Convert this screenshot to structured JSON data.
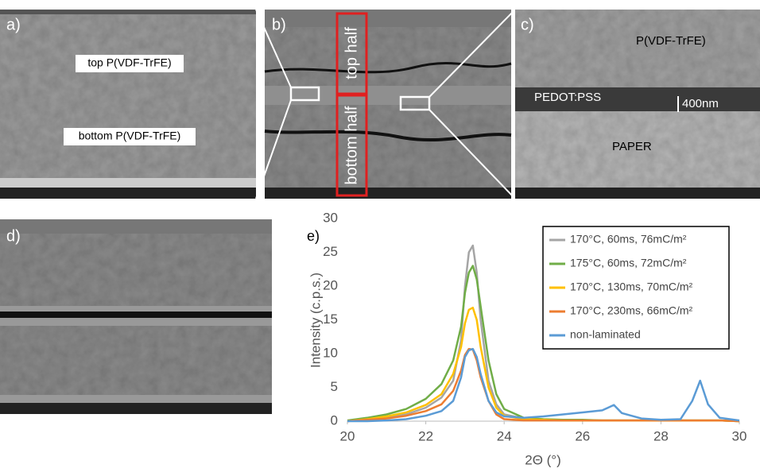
{
  "panels": {
    "a": {
      "label": "a)",
      "top": "top P(VDF-TrFE)",
      "bottom": "bottom P(VDF-TrFE)"
    },
    "b": {
      "label": "b)",
      "top": "top half",
      "bottom": "bottom half"
    },
    "c": {
      "label": "c)",
      "polymer": "P(VDF-TrFE)",
      "electrode": "PEDOT:PSS",
      "scale": "400nm",
      "substrate": "PAPER"
    },
    "d": {
      "label": "d)"
    }
  },
  "chart_data": {
    "type": "line",
    "panel_label": "e)",
    "x_label": "2Θ (°)",
    "y_label": "Intensity (c.p.s.)",
    "x": [
      20,
      20.5,
      21,
      21.5,
      22,
      22.4,
      22.7,
      22.9,
      23.0,
      23.1,
      23.2,
      23.3,
      23.4,
      23.6,
      23.8,
      24.0,
      24.5,
      25,
      25.5,
      26,
      26.5,
      26.8,
      27,
      27.5,
      28,
      28.5,
      28.8,
      29.0,
      29.2,
      29.5,
      30
    ],
    "xlim": [
      20,
      30
    ],
    "xticks": [
      20,
      22,
      24,
      26,
      28,
      30
    ],
    "ylim": [
      0,
      30
    ],
    "yticks": [
      0,
      5,
      10,
      15,
      20,
      25,
      30
    ],
    "grid": false,
    "legend": "top-right",
    "series": [
      {
        "name": "170°C, 60ms, 76mC/m²",
        "color": "#a5a5a5",
        "values": [
          0,
          0.3,
          0.6,
          1.0,
          2,
          3.5,
          6,
          12,
          20,
          25,
          26,
          22,
          15,
          6,
          2.5,
          1,
          0.4,
          0.2,
          0.1,
          0.1,
          0.1,
          0.1,
          0.1,
          0.1,
          0.1,
          0.1,
          0.1,
          0.1,
          0.1,
          0.1,
          0
        ]
      },
      {
        "name": "175°C, 60ms, 72mC/m²",
        "color": "#70ad47",
        "values": [
          0.1,
          0.5,
          1.0,
          1.8,
          3.3,
          5.5,
          9,
          14,
          19,
          22,
          23,
          21,
          17,
          9,
          4,
          1.8,
          0.5,
          0.3,
          0.2,
          0.2,
          0.1,
          0.1,
          0.1,
          0.1,
          0.1,
          0.1,
          0.1,
          0.1,
          0.1,
          0.1,
          0
        ]
      },
      {
        "name": "170°C, 130ms, 70mC/m²",
        "color": "#ffc000",
        "values": [
          0,
          0.3,
          0.7,
          1.3,
          2.4,
          4,
          7,
          11,
          14.5,
          16.5,
          16.8,
          15,
          11,
          5,
          2,
          0.8,
          0.3,
          0.2,
          0.1,
          0.1,
          0.1,
          0.1,
          0.1,
          0.1,
          0.1,
          0.1,
          0.1,
          0.1,
          0.1,
          0.1,
          0
        ]
      },
      {
        "name": "170°C, 230ms, 66mC/m²",
        "color": "#ed7d31",
        "values": [
          0,
          0.2,
          0.4,
          0.8,
          1.5,
          2.5,
          4.5,
          7.5,
          9.8,
          10.7,
          10.6,
          9,
          6.5,
          3,
          1,
          0.3,
          0.1,
          0.1,
          0.1,
          0.1,
          0.1,
          0.1,
          0.1,
          0.1,
          0.1,
          0.1,
          0.1,
          0.1,
          0.1,
          0.1,
          0
        ]
      },
      {
        "name": "non-laminated",
        "color": "#5b9bd5",
        "values": [
          0,
          0,
          0.1,
          0.3,
          0.8,
          1.5,
          3,
          6.5,
          9.5,
          10.5,
          10.7,
          9.5,
          7,
          3,
          1.3,
          0.7,
          0.5,
          0.7,
          1.0,
          1.3,
          1.6,
          2.4,
          1.2,
          0.4,
          0.2,
          0.3,
          3,
          6,
          2.5,
          0.5,
          0.1
        ]
      }
    ]
  }
}
